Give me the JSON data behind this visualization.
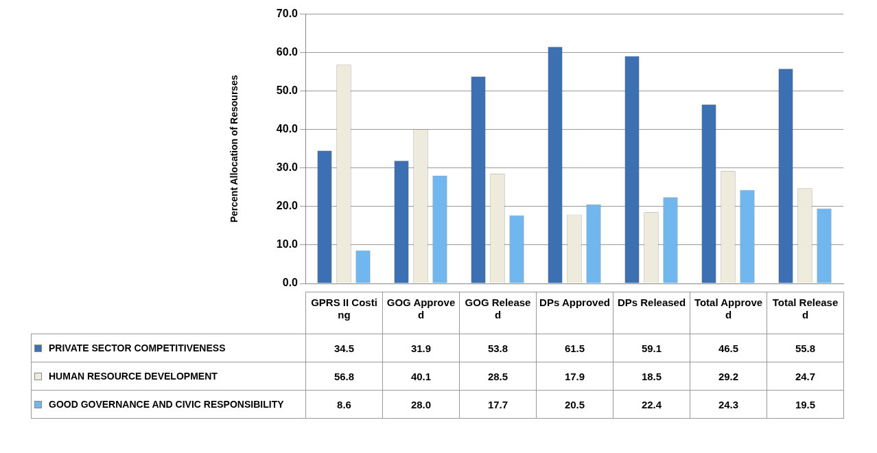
{
  "chart_data": {
    "type": "bar",
    "ylabel": "Percent Allocation of Resourses",
    "categories": [
      "GPRS II Costing",
      "GOG Approved",
      "GOG Released",
      "DPs Approved",
      "DPs Released",
      "Total Approved",
      "Total Released"
    ],
    "series": [
      {
        "name": "PRIVATE SECTOR COMPETITIVENESS",
        "color": "#3d6fb3",
        "values": [
          34.5,
          31.9,
          53.8,
          61.5,
          59.1,
          46.5,
          55.8
        ],
        "value_labels": [
          "34.5",
          "31.9",
          "53.8",
          "61.5",
          "59.1",
          "46.5",
          "55.8"
        ]
      },
      {
        "name": "HUMAN RESOURCE DEVELOPMENT",
        "color": "#eeebdc",
        "values": [
          56.8,
          40.1,
          28.5,
          17.9,
          18.5,
          29.2,
          24.7
        ],
        "value_labels": [
          "56.8",
          "40.1",
          "28.5",
          "17.9",
          "18.5",
          "29.2",
          "24.7"
        ]
      },
      {
        "name": "GOOD GOVERNANCE AND CIVIC RESPONSIBILITY",
        "color": "#70b7f0",
        "values": [
          8.6,
          28.0,
          17.7,
          20.5,
          22.4,
          24.3,
          19.5
        ],
        "value_labels": [
          "8.6",
          "28.0",
          "17.7",
          "20.5",
          "22.4",
          "24.3",
          "19.5"
        ]
      }
    ],
    "ylim": [
      0,
      70
    ],
    "yticks": [
      {
        "value": 0,
        "label": "0.0"
      },
      {
        "value": 10,
        "label": "10.0"
      },
      {
        "value": 20,
        "label": "20.0"
      },
      {
        "value": 30,
        "label": "30.0"
      },
      {
        "value": 40,
        "label": "40.0"
      },
      {
        "value": 50,
        "label": "50.0"
      },
      {
        "value": 60,
        "label": "60.0"
      },
      {
        "value": 70,
        "label": "70.0"
      }
    ],
    "grid": "y",
    "legend": "bottom"
  }
}
